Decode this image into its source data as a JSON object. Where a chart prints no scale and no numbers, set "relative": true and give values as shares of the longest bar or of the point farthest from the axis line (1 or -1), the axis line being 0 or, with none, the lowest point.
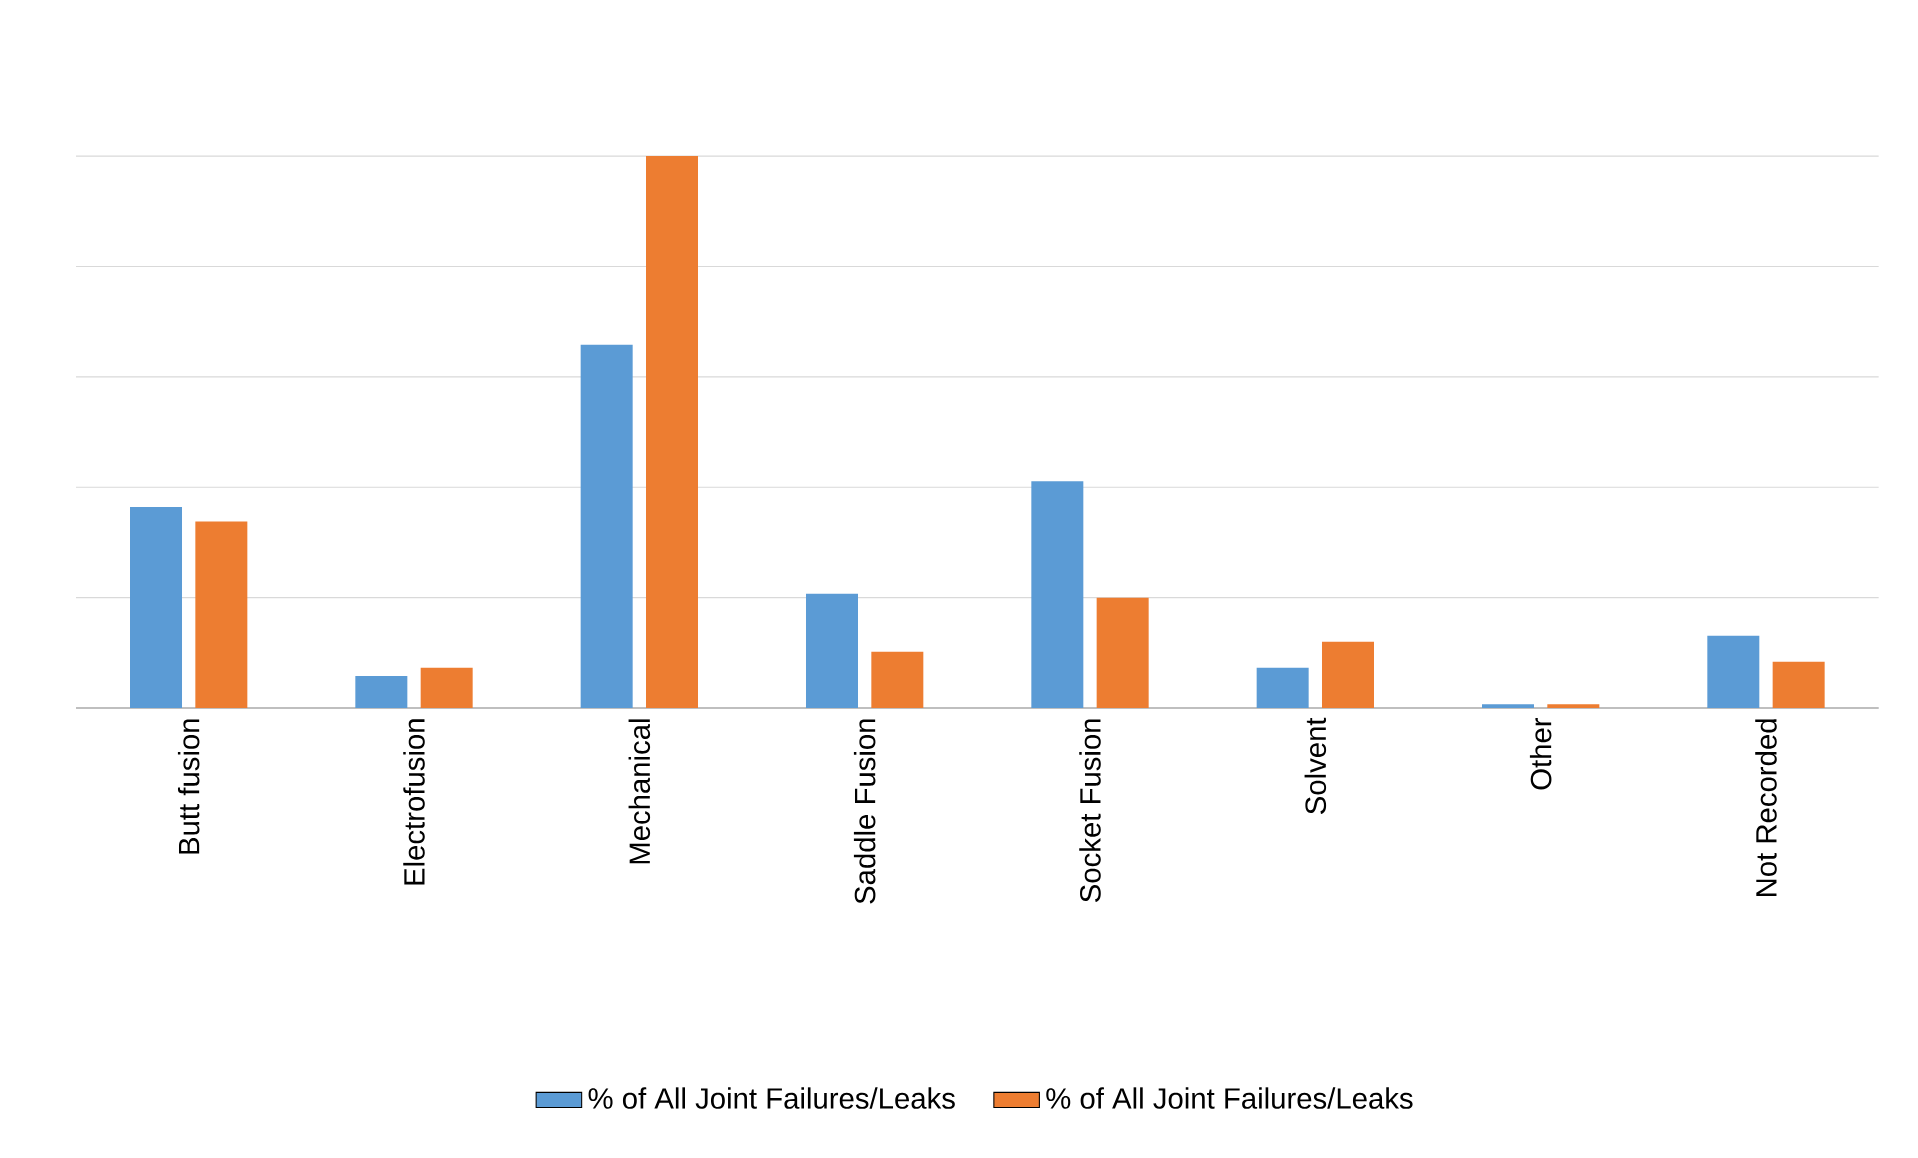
{
  "chart_data": {
    "type": "bar",
    "relative": true,
    "categories": [
      "Butt fusion",
      "Electrofusion",
      "Mechanical",
      "Saddle Fusion",
      "Socket Fusion",
      "Solvent",
      "Other",
      "Not Recorded"
    ],
    "series": [
      {
        "name": "% of All Joint Failures/Leaks",
        "color": "#5b9bd5",
        "values": [
          0.364,
          0.058,
          0.658,
          0.207,
          0.411,
          0.073,
          0.007,
          0.131
        ]
      },
      {
        "name": "% of All Joint Failures/Leaks",
        "color": "#ed7d31",
        "values": [
          0.338,
          0.073,
          1,
          0.102,
          0.2,
          0.12,
          0.007,
          0.084
        ]
      }
    ],
    "grid": "y",
    "legend": "bottom"
  }
}
